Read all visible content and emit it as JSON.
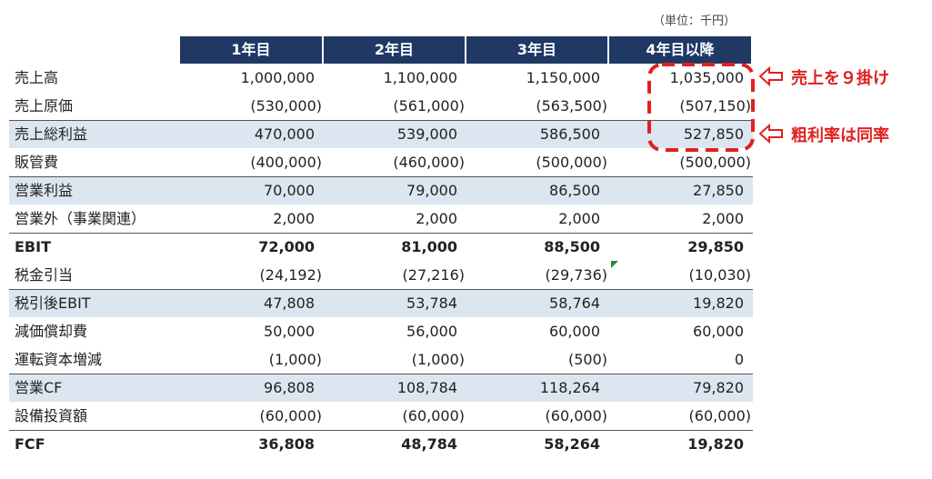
{
  "unit_note": "（単位：千円）",
  "table": {
    "header": [
      "1年目",
      "2年目",
      "3年目",
      "4年目以降"
    ],
    "rows": [
      [
        "売上高",
        "1,000,000",
        "1,100,000",
        "1,150,000",
        "1,035,000"
      ],
      [
        "売上原価",
        "(530,000)",
        "(561,000)",
        "(563,500)",
        "(507,150)"
      ],
      [
        "売上総利益",
        "470,000",
        "539,000",
        "586,500",
        "527,850"
      ],
      [
        "販管費",
        "(400,000)",
        "(460,000)",
        "(500,000)",
        "(500,000)"
      ],
      [
        "営業利益",
        "70,000",
        "79,000",
        "86,500",
        "27,850"
      ],
      [
        "営業外（事業関連）",
        "2,000",
        "2,000",
        "2,000",
        "2,000"
      ],
      [
        "EBIT",
        "72,000",
        "81,000",
        "88,500",
        "29,850"
      ],
      [
        "税金引当",
        "(24,192)",
        "(27,216)",
        "(29,736)",
        "(10,030)"
      ],
      [
        "税引後EBIT",
        "47,808",
        "53,784",
        "58,764",
        "19,820"
      ],
      [
        "減価償却費",
        "50,000",
        "56,000",
        "60,000",
        "60,000"
      ],
      [
        "運転資本増減",
        "(1,000)",
        "(1,000)",
        "(500)",
        "0"
      ],
      [
        "営業CF",
        "96,808",
        "108,784",
        "118,264",
        "79,820"
      ],
      [
        "設備投資額",
        "(60,000)",
        "(60,000)",
        "(60,000)",
        "(60,000)"
      ],
      [
        "FCF",
        "36,808",
        "48,784",
        "58,264",
        "19,820"
      ]
    ]
  },
  "annotations": [
    "売上を９掛け",
    "粗利率は同率"
  ]
}
